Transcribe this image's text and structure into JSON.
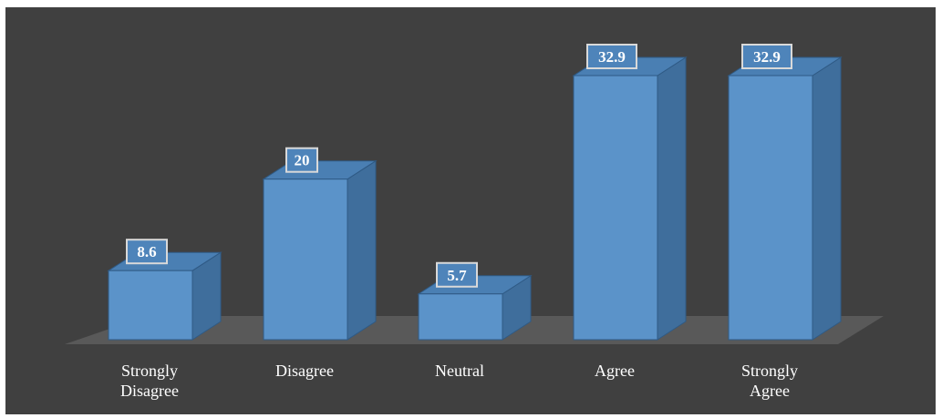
{
  "chart_data": {
    "type": "bar",
    "style": "3d-column",
    "categories": [
      "Strongly Disagree",
      "Disagree",
      "Neutral",
      "Agree",
      "Strongly Agree"
    ],
    "category_lines": [
      [
        "Strongly",
        "Disagree"
      ],
      [
        "Disagree"
      ],
      [
        "Neutral"
      ],
      [
        "Agree"
      ],
      [
        "Strongly",
        "Agree"
      ]
    ],
    "values": [
      8.6,
      20,
      5.7,
      32.9,
      32.9
    ],
    "value_labels": [
      "8.6",
      "20",
      "5.7",
      "32.9",
      "32.9"
    ],
    "ylim": [
      0,
      32.9
    ],
    "grid": false,
    "legend": "none",
    "colors": {
      "background": "#404040",
      "bar_front": "#5b93c9",
      "bar_side": "#3f6e9c",
      "bar_top": "#4a7fb3",
      "floor": "#595959",
      "label_box_fill": "#4e84ba",
      "label_box_border": "#d9d9d9",
      "text": "#ffffff"
    }
  }
}
